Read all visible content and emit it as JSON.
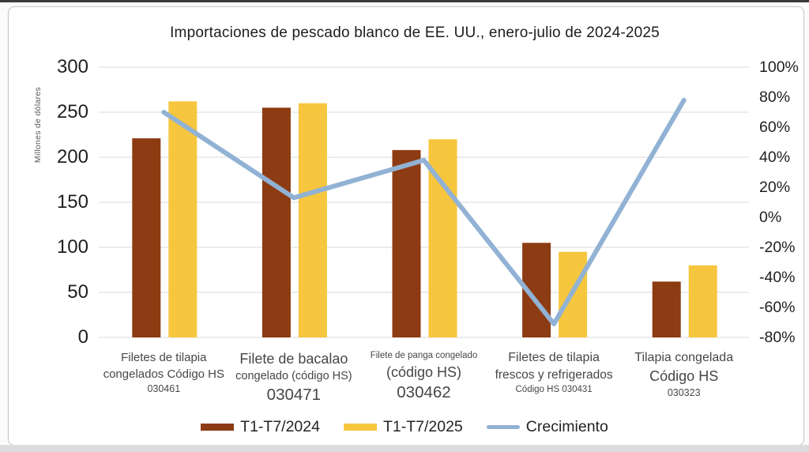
{
  "window": {
    "top_edge_color": "#3a3a3a",
    "card_border_color": "#c7c7c7",
    "bottom_strip_color": "#dbdcdd",
    "gridline_color": "#d9d9d9"
  },
  "chart_data": {
    "type": "combo-bar-line",
    "title": "Importaciones de pescado blanco de EE. UU., enero-julio de 2024-2025",
    "left_axis": {
      "title": "Millones de dólares",
      "min": 0,
      "max": 300,
      "ticks": [
        "300",
        "250",
        "200",
        "150",
        "100",
        "50",
        "0"
      ]
    },
    "right_axis": {
      "min": -80,
      "max": 100,
      "ticks": [
        "100%",
        "80%",
        "60%",
        "40%",
        "20%",
        "0%",
        "-20%",
        "-40%",
        "-60%",
        "-80%"
      ]
    },
    "categories": [
      {
        "lines": [
          "Filetes de tilapia",
          "congelados Código HS",
          "030461"
        ]
      },
      {
        "lines": [
          "Filete de bacalao",
          "congelado (código HS)",
          "030471"
        ]
      },
      {
        "lines": [
          "Filete de panga congelado",
          "(código HS)",
          "030462"
        ]
      },
      {
        "lines": [
          "Filetes de tilapia",
          "frescos y refrigerados",
          "Código HS 030431"
        ]
      },
      {
        "lines": [
          "Tilapia congelada",
          "Código HS",
          "030323"
        ]
      }
    ],
    "series": [
      {
        "name": "T1-T7/2024",
        "type": "bar",
        "axis": "left",
        "color": "#8D3B13",
        "values": [
          221,
          255,
          208,
          105,
          62
        ]
      },
      {
        "name": "T1-T7/2025",
        "type": "bar",
        "axis": "left",
        "color": "#F6C63E",
        "values": [
          262,
          260,
          220,
          95,
          80
        ]
      },
      {
        "name": "Crecimiento",
        "type": "line",
        "axis": "right",
        "color": "#91B2D4",
        "values": [
          70,
          13,
          38,
          -71,
          78
        ]
      }
    ],
    "grid": true,
    "legend_position": "bottom"
  }
}
